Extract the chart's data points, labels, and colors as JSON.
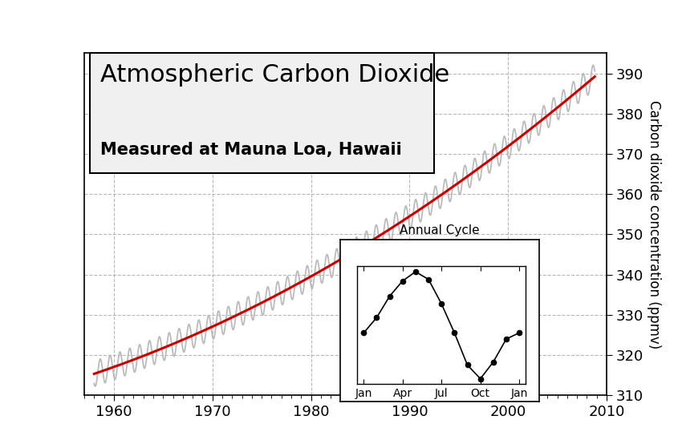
{
  "title_line1": "Atmospheric Carbon Dioxide",
  "title_line2": "Measured at Mauna Loa, Hawaii",
  "ylabel": "Carbon dioxide concentration (ppmv)",
  "xlabel_ticks": [
    1960,
    1970,
    1980,
    1990,
    2000,
    2010
  ],
  "ylim": [
    310,
    395
  ],
  "xlim": [
    1957.0,
    2009.0
  ],
  "yticks": [
    310,
    320,
    330,
    340,
    350,
    360,
    370,
    380,
    390
  ],
  "trend_color": "#cc0000",
  "seasonal_color": "#bbbbbb",
  "grid_color": "#999999",
  "inset_title": "Annual Cycle",
  "inset_months": [
    "Jan",
    "Apr",
    "Jul",
    "Oct",
    "Jan"
  ],
  "title_fontsize": 22,
  "subtitle_fontsize": 15,
  "tick_fontsize": 13,
  "ylabel_fontsize": 12
}
